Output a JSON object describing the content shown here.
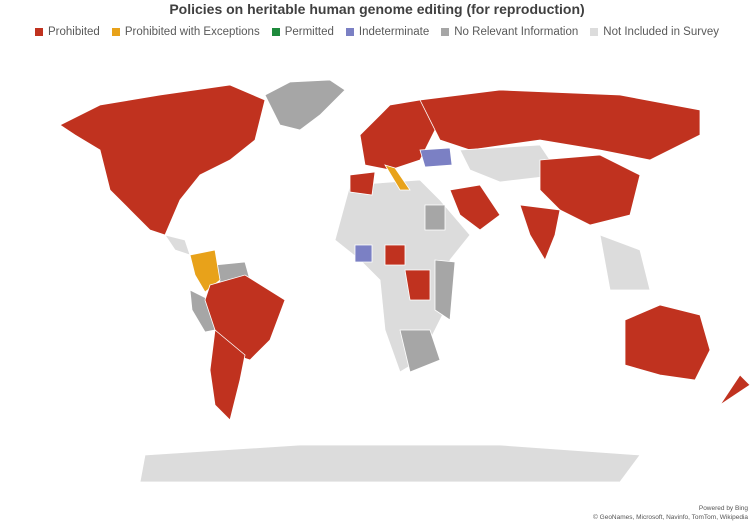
{
  "title": "Policies on heritable human genome editing (for reproduction)",
  "legend": [
    {
      "label": "Prohibited",
      "color": "#c0321f"
    },
    {
      "label": "Prohibited with Exceptions",
      "color": "#e8a21a"
    },
    {
      "label": "Permitted",
      "color": "#1e8a3c"
    },
    {
      "label": "Indeterminate",
      "color": "#7b80c4"
    },
    {
      "label": "No Relevant Information",
      "color": "#a6a6a6"
    },
    {
      "label": "Not Included in Survey",
      "color": "#dcdcdc"
    }
  ],
  "attribution": {
    "powered": "Powered by Bing",
    "sources": "© GeoNames, Microsoft, Navinfo, TomTom, Wikipedia"
  }
}
